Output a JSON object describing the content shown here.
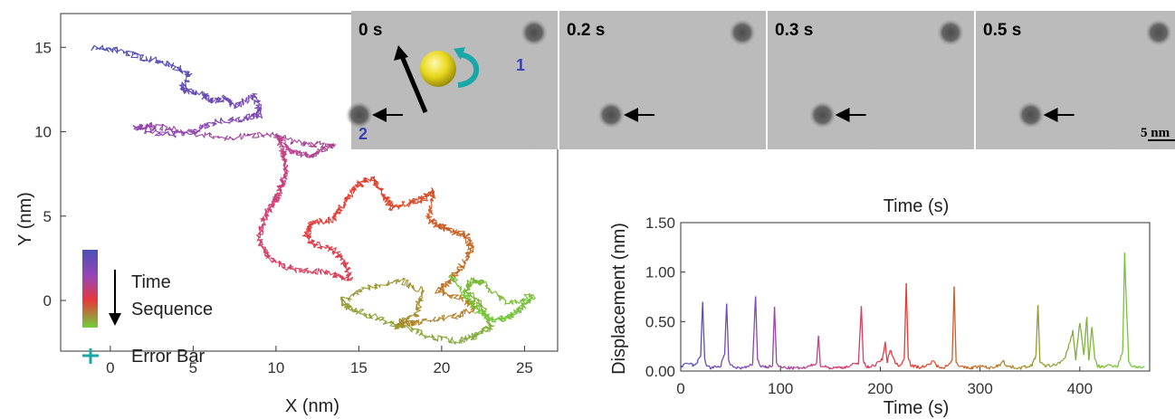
{
  "figure": {
    "colors": {
      "time_gradient": [
        "#4b4fb7",
        "#8a44b3",
        "#d33f76",
        "#e63a2b",
        "#bb7a24",
        "#86a83a",
        "#6fcf38"
      ],
      "error_bar": "#1aa7a7",
      "bead": "#e8d81c",
      "rotation_arrow": "#1aa7a7",
      "particle_label": "#3b3fb3"
    }
  },
  "trajectory": {
    "xlabel": "X (nm)",
    "ylabel": "Y (nm)",
    "xlim": [
      -3,
      27
    ],
    "ylim": [
      -3,
      17
    ],
    "xticks": [
      0,
      5,
      10,
      15,
      20,
      25
    ],
    "yticks": [
      0,
      5,
      10,
      15
    ],
    "legend": {
      "time_line1": "Time",
      "time_line2": "Sequence",
      "error_bar": "Error Bar"
    }
  },
  "snapshots": {
    "frames": [
      {
        "time": "0 s",
        "particle_x_nm": -6.0,
        "particle_y_nm": 2.0
      },
      {
        "time": "0.2 s",
        "particle_x_nm": 2.0,
        "particle_y_nm": 1.6
      },
      {
        "time": "0.3 s",
        "particle_x_nm": 2.6,
        "particle_y_nm": 1.5
      },
      {
        "time": "0.5 s",
        "particle_x_nm": 2.6,
        "particle_y_nm": 1.4
      }
    ],
    "particle_labels": [
      "1",
      "2"
    ],
    "scale_bar": "5 nm"
  },
  "chart_data": [
    {
      "type": "line",
      "title": "",
      "xlabel": "X (nm)",
      "ylabel": "Y (nm)",
      "xlim": [
        -3,
        27
      ],
      "ylim": [
        -3,
        17
      ],
      "grid": false,
      "x": [
        -1.0,
        0.5,
        2.0,
        3.5,
        4.8,
        4.2,
        5.5,
        6.2,
        7.0,
        7.5,
        8.8,
        9.0,
        8.2,
        6.5,
        5.0,
        3.5,
        1.5,
        2.5,
        4.5,
        7.0,
        9.5,
        11.5,
        13.5,
        12.0,
        11.0,
        10.2,
        10.5,
        10.6,
        10.3,
        10.0,
        9.6,
        9.2,
        9.0,
        9.5,
        11.0,
        13.0,
        14.5,
        14.2,
        13.5,
        12.2,
        11.8,
        12.2,
        13.5,
        14.0,
        14.8,
        15.8,
        16.5,
        17.0,
        18.2,
        19.0,
        19.5,
        19.2,
        19.8,
        20.5,
        21.5,
        21.8,
        21.2,
        20.5,
        19.8,
        21.5,
        22.0,
        20.5,
        18.5,
        17.8,
        17.2,
        18.5,
        18.8,
        17.5,
        15.5,
        14.0,
        14.5,
        16.0,
        17.8,
        19.5,
        21.0,
        22.0,
        23.0,
        22.5,
        21.5,
        21.8,
        22.5,
        24.0,
        25.5,
        24.8,
        24.0,
        23.2,
        22.2,
        21.5,
        20.5
      ],
      "y": [
        15.0,
        14.8,
        14.4,
        14.0,
        13.4,
        12.5,
        12.2,
        11.8,
        12.0,
        11.5,
        12.2,
        11.0,
        10.8,
        10.6,
        10.0,
        9.8,
        10.2,
        10.4,
        10.0,
        9.6,
        9.9,
        9.3,
        9.2,
        8.6,
        8.8,
        9.6,
        8.5,
        7.5,
        6.8,
        6.0,
        5.4,
        4.8,
        3.6,
        2.5,
        1.8,
        1.7,
        1.2,
        2.2,
        3.0,
        3.4,
        4.0,
        4.6,
        4.8,
        5.6,
        6.8,
        7.2,
        6.2,
        5.5,
        5.8,
        6.1,
        6.5,
        4.8,
        4.4,
        4.2,
        3.8,
        3.0,
        2.0,
        1.2,
        0.6,
        0.0,
        -0.5,
        -1.0,
        -1.3,
        -1.4,
        -1.5,
        -0.8,
        0.6,
        1.2,
        0.7,
        0.0,
        -0.5,
        -1.0,
        -1.6,
        -2.2,
        -2.4,
        -2.1,
        -1.5,
        -0.5,
        0.6,
        1.2,
        1.0,
        -0.2,
        0.3,
        -0.5,
        -1.0,
        -1.2,
        -0.6,
        0.2,
        1.5
      ]
    },
    {
      "type": "line",
      "title": "Time (s)",
      "xlabel": "Time (s)",
      "ylabel": "Displacement (nm)",
      "xlim": [
        0,
        470
      ],
      "ylim": [
        0,
        1.5
      ],
      "grid": false,
      "xticks": [
        0,
        100,
        200,
        300,
        400
      ],
      "yticks": [
        "0.00",
        "0.50",
        "1.00",
        "1.50"
      ],
      "x": [
        0,
        8,
        14,
        20,
        22,
        24,
        26,
        30,
        40,
        44,
        46,
        48,
        52,
        62,
        72,
        75,
        77,
        80,
        88,
        92,
        94,
        96,
        99,
        110,
        125,
        136,
        138,
        140,
        150,
        165,
        178,
        181,
        183,
        186,
        195,
        202,
        205,
        207,
        210,
        215,
        220,
        224,
        226,
        228,
        231,
        240,
        250,
        253,
        256,
        265,
        272,
        274,
        276,
        280,
        290,
        300,
        310,
        320,
        323,
        326,
        340,
        352,
        356,
        358,
        360,
        364,
        375,
        385,
        393,
        396,
        400,
        404,
        407,
        409,
        412,
        415,
        418,
        422,
        430,
        438,
        443,
        445,
        447,
        449,
        452,
        460,
        465
      ],
      "values": [
        0.04,
        0.08,
        0.05,
        0.15,
        0.7,
        0.12,
        0.06,
        0.03,
        0.05,
        0.18,
        0.67,
        0.1,
        0.04,
        0.03,
        0.06,
        0.76,
        0.12,
        0.05,
        0.04,
        0.06,
        0.64,
        0.08,
        0.04,
        0.03,
        0.03,
        0.08,
        0.35,
        0.06,
        0.03,
        0.04,
        0.08,
        0.65,
        0.1,
        0.04,
        0.06,
        0.12,
        0.28,
        0.1,
        0.22,
        0.08,
        0.05,
        0.12,
        0.9,
        0.15,
        0.05,
        0.04,
        0.06,
        0.12,
        0.05,
        0.04,
        0.1,
        0.85,
        0.1,
        0.04,
        0.03,
        0.05,
        0.03,
        0.06,
        0.12,
        0.05,
        0.03,
        0.06,
        0.15,
        0.68,
        0.1,
        0.05,
        0.06,
        0.12,
        0.4,
        0.12,
        0.5,
        0.15,
        0.55,
        0.1,
        0.45,
        0.12,
        0.05,
        0.04,
        0.06,
        0.05,
        0.2,
        1.18,
        0.6,
        0.1,
        0.05,
        0.04,
        0.04
      ]
    }
  ]
}
